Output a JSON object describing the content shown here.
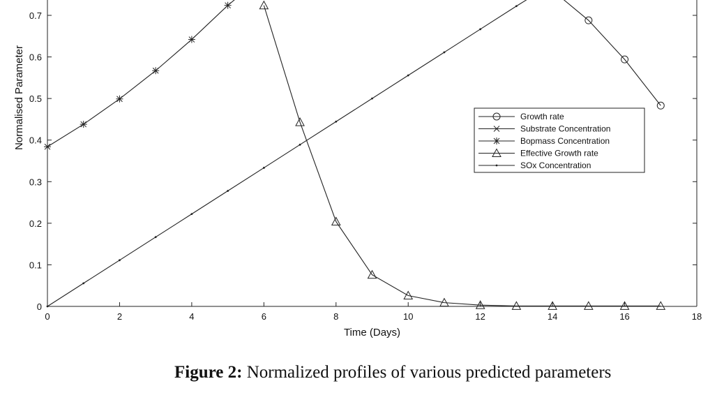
{
  "chart_data": {
    "type": "line",
    "xlabel": "Time (Days)",
    "ylabel": "Normalised Parameter",
    "xlim": [
      0,
      18
    ],
    "ylim": [
      0,
      0.7
    ],
    "x_ticks": [
      "0",
      "2",
      "4",
      "6",
      "8",
      "10",
      "12",
      "14",
      "16",
      "18"
    ],
    "y_ticks": [
      "0",
      "0.1",
      "0.2",
      "0.3",
      "0.4",
      "0.5",
      "0.6",
      "0.7"
    ],
    "legend_position": "center-right",
    "series": [
      {
        "name": "Growth rate",
        "marker": "circle",
        "x": [
          14,
          15,
          16,
          17
        ],
        "y": [
          0.76,
          0.688,
          0.594,
          0.483
        ]
      },
      {
        "name": "Substrate Concentration",
        "marker": "x",
        "x": [],
        "y": []
      },
      {
        "name": "Bopmass Concentration",
        "marker": "star",
        "x": [
          0,
          1,
          2,
          3,
          4,
          5,
          5.5
        ],
        "y": [
          0.384,
          0.438,
          0.499,
          0.567,
          0.642,
          0.724,
          0.76
        ]
      },
      {
        "name": "Effective Growth rate",
        "marker": "triangle",
        "x": [
          6,
          7,
          8,
          9,
          10,
          11,
          12,
          13,
          14,
          15,
          16,
          17
        ],
        "y": [
          0.724,
          0.443,
          0.204,
          0.076,
          0.026,
          0.009,
          0.003,
          0.001,
          0.001,
          0.001,
          0.001,
          0.001
        ]
      },
      {
        "name": "SOx Concentration",
        "marker": "dot",
        "x": [
          0,
          1,
          2,
          3,
          4,
          5,
          6,
          7,
          8,
          9,
          10,
          11,
          12,
          13,
          13.7
        ],
        "y": [
          0,
          0.0556,
          0.1111,
          0.1667,
          0.2222,
          0.2778,
          0.3333,
          0.3889,
          0.4444,
          0.5,
          0.5556,
          0.6111,
          0.6667,
          0.7222,
          0.76
        ]
      }
    ]
  },
  "caption": {
    "label": "Figure 2:",
    "text": " Normalized profiles of various predicted parameters"
  }
}
